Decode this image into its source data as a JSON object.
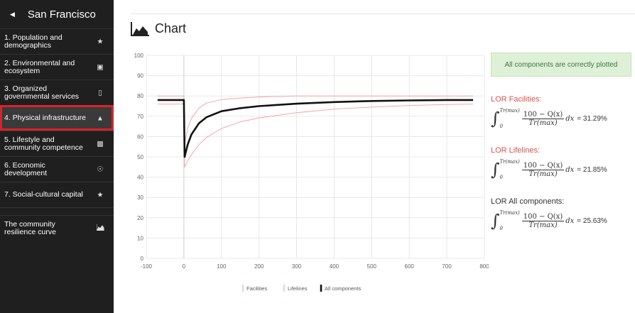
{
  "sidebar": {
    "title": "San Francisco",
    "items": [
      {
        "label": "1. Population and demographics",
        "icon": "people-icon"
      },
      {
        "label": "2. Environmental and ecosystem",
        "icon": "briefcase-icon"
      },
      {
        "label": "3. Organized governmental services",
        "icon": "building-icon"
      },
      {
        "label": "4. Physical infrastructure",
        "icon": "bank-icon",
        "active": true
      },
      {
        "label": "5. Lifestyle and community competence",
        "icon": "money-icon"
      },
      {
        "label": "6. Economic development",
        "icon": "dashboard-icon"
      },
      {
        "label": "7. Social-cultural capital",
        "icon": "people-icon"
      }
    ],
    "curve_item": {
      "label": "The community resilience curve",
      "icon": "area-chart-icon"
    }
  },
  "main": {
    "title": "Chart",
    "alert": "All components are correctly plotted",
    "lor": [
      {
        "heading": "LOR Facilities:",
        "result": "= 31.29%",
        "color": "#d9534f"
      },
      {
        "heading": "LOR Lifelines:",
        "result": "= 21.85%",
        "color": "#d9534f"
      },
      {
        "heading": "LOR All components:",
        "result": "= 25.63%",
        "color": "#333333"
      }
    ],
    "formula": {
      "upper": "Tr(max)",
      "lower": "0",
      "numerator": "100 − Q(x)",
      "denominator": "Tr(max)",
      "differential": "dx"
    }
  },
  "chart_data": {
    "type": "line",
    "xlim": [
      -100,
      800
    ],
    "ylim": [
      0,
      100
    ],
    "x_ticks": [
      -100,
      0,
      100,
      200,
      300,
      400,
      500,
      600,
      700,
      800
    ],
    "y_ticks": [
      0,
      10,
      20,
      30,
      40,
      50,
      60,
      70,
      80,
      90,
      100
    ],
    "legend": [
      "Facilities",
      "Lifelines",
      "All components"
    ],
    "legend_position": "bottom",
    "grid": true,
    "series": [
      {
        "name": "Facilities",
        "color": "#f4a6a6",
        "x": [
          -70,
          0,
          2,
          10,
          20,
          40,
          60,
          100,
          150,
          200,
          300,
          400,
          500,
          600,
          700,
          770
        ],
        "y": [
          80,
          80,
          56,
          64,
          69,
          74,
          76.5,
          78.2,
          79,
          79.5,
          80,
          80,
          80,
          80,
          80,
          80
        ]
      },
      {
        "name": "Lifelines",
        "color": "#f4a6a6",
        "x": [
          -70,
          0,
          2,
          10,
          20,
          40,
          60,
          100,
          150,
          200,
          300,
          400,
          500,
          600,
          700,
          770
        ],
        "y": [
          76,
          76,
          45,
          48,
          51,
          56,
          59.5,
          64,
          67.2,
          69.2,
          71.8,
          73.5,
          74.5,
          75.3,
          75.8,
          76
        ]
      },
      {
        "name": "All components",
        "color": "#111111",
        "x": [
          -70,
          0,
          2,
          10,
          20,
          40,
          60,
          100,
          150,
          200,
          300,
          400,
          500,
          600,
          700,
          770
        ],
        "y": [
          78,
          78,
          50,
          56,
          61,
          66.5,
          69.5,
          72.5,
          74,
          75,
          76.2,
          77,
          77.5,
          77.8,
          78,
          78
        ]
      }
    ]
  }
}
